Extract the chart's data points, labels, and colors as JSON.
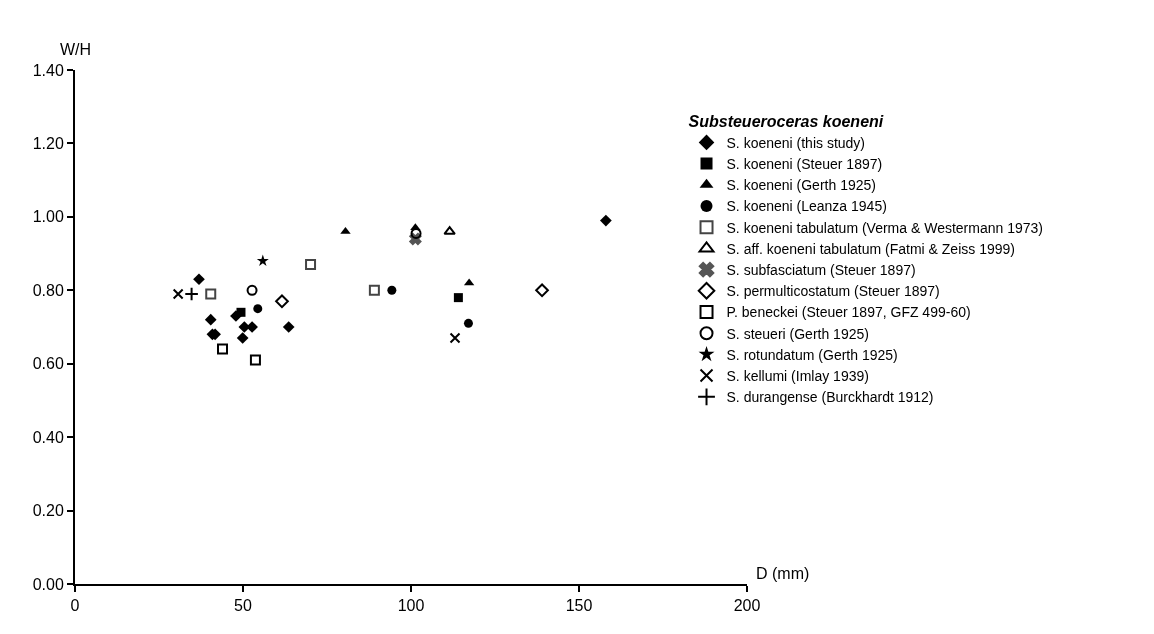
{
  "chart_data": {
    "type": "scatter",
    "xlabel": "D (mm)",
    "ylabel": "W/H",
    "legend_title": "Substeueroceras koeneni",
    "legend": "right",
    "xlim": [
      0,
      200
    ],
    "xticks": [
      0,
      50,
      100,
      150,
      200
    ],
    "ylim": [
      0,
      1.4
    ],
    "yticks": [
      {
        "value": 0,
        "label": "0.00"
      },
      {
        "value": 0.2,
        "label": "0.20"
      },
      {
        "value": 0.4,
        "label": "0.40"
      },
      {
        "value": 0.6,
        "label": "0.60"
      },
      {
        "value": 0.8,
        "label": "0.80"
      },
      {
        "value": 1.0,
        "label": "1.00"
      },
      {
        "value": 1.2,
        "label": "1.20"
      },
      {
        "value": 1.4,
        "label": "1.40"
      }
    ],
    "series": [
      {
        "name": "S. koeneni (this study)",
        "color": "#000000",
        "marker": "diamond",
        "x": [
          36.9,
          40.4,
          40.9,
          41.7,
          47.9,
          50.4,
          52.7,
          49.9,
          63.6,
          158
        ],
        "values": [
          0.83,
          0.72,
          0.68,
          0.68,
          0.73,
          0.7,
          0.7,
          0.67,
          0.7,
          0.99
        ]
      },
      {
        "name": "S. koeneni (Steuer 1897)",
        "color": "#000000",
        "marker": "square",
        "x": [
          49.4,
          114.1
        ],
        "values": [
          0.74,
          0.78
        ]
      },
      {
        "name": "S. koeneni (Gerth 1925)",
        "color": "#000000",
        "marker": "triangle",
        "x": [
          80.5,
          101.3,
          117.3
        ],
        "values": [
          0.96,
          0.97,
          0.82
        ]
      },
      {
        "name": "S. koeneni (Leanza 1945)",
        "color": "#000000",
        "marker": "circle",
        "x": [
          54.4,
          94.3,
          117.1
        ],
        "values": [
          0.75,
          0.8,
          0.71
        ]
      },
      {
        "name": "S. koeneni tabulatum (Verma & Westermann 1973)",
        "color": "#444444",
        "marker": "square-open",
        "x": [
          40.4,
          70.1,
          89.1
        ],
        "values": [
          0.79,
          0.87,
          0.8
        ]
      },
      {
        "name": "S. aff. koeneni tabulatum (Fatmi & Zeiss 1999)",
        "color": "#000000",
        "marker": "triangle-open",
        "x": [
          111.5
        ],
        "values": [
          0.96
        ]
      },
      {
        "name": "S. subfasciatum (Steuer 1897)",
        "color": "#555555",
        "marker": "x",
        "x": [
          101.3
        ],
        "values": [
          0.94
        ]
      },
      {
        "name": "S. permulticostatum (Steuer 1897)",
        "color": "#000000",
        "marker": "diamond-open",
        "x": [
          61.6,
          139
        ],
        "values": [
          0.77,
          0.8
        ]
      },
      {
        "name": "P. beneckei (Steuer 1897, GFZ 499-60)",
        "color": "#000000",
        "marker": "square-open",
        "x": [
          43.9,
          53.7
        ],
        "values": [
          0.64,
          0.61
        ]
      },
      {
        "name": "S. steueri (Gerth 1925)",
        "color": "#000000",
        "marker": "circle-open",
        "x": [
          52.7,
          101.5
        ],
        "values": [
          0.8,
          0.955
        ]
      },
      {
        "name": "S. rotundatum (Gerth 1925)",
        "color": "#000000",
        "marker": "star",
        "x": [
          55.9
        ],
        "values": [
          0.88
        ]
      },
      {
        "name": "S. kellumi (Imlay 1939)",
        "color": "#000000",
        "marker": "cross",
        "x": [
          30.7,
          113.1
        ],
        "values": [
          0.79,
          0.67
        ]
      },
      {
        "name": "S. durangense (Burckhardt 1912)",
        "color": "#000000",
        "marker": "cross-thin-open",
        "x": [
          34.7
        ],
        "values": [
          0.79
        ]
      }
    ]
  }
}
